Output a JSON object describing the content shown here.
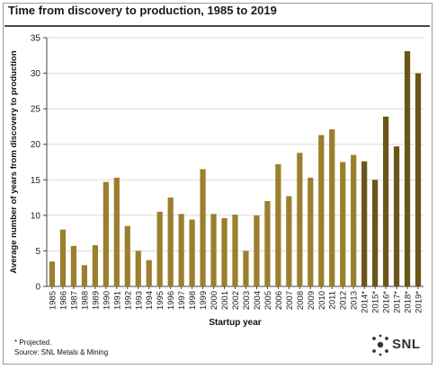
{
  "title": "Time from discovery to production, 1985 to 2019",
  "footnote": "* Projected.",
  "source": "Source: SNL Metals & Mining",
  "logo_text": "SNL",
  "colors": {
    "actual": "#9b7f2d",
    "projected": "#6b5518",
    "last_actual": "#c4a86a",
    "axis": "#444444",
    "grid": "#d9d9d9"
  },
  "chart_data": {
    "type": "bar",
    "title": "Time from discovery to production, 1985 to 2019",
    "xlabel": "Startup year",
    "ylabel": "Average number of years from discovery to production",
    "ylim": [
      0,
      35
    ],
    "yticks": [
      0,
      5,
      10,
      15,
      20,
      25,
      30,
      35
    ],
    "grid": true,
    "categories": [
      "1985",
      "1986",
      "1987",
      "1988",
      "1989",
      "1990",
      "1991",
      "1992",
      "1993",
      "1994",
      "1995",
      "1996",
      "1997",
      "1998",
      "1999",
      "2000",
      "2001",
      "2002",
      "2003",
      "2004",
      "2005",
      "2006",
      "2007",
      "2008",
      "2009",
      "2010",
      "2011",
      "2012",
      "2013",
      "2014*",
      "2015*",
      "2016*",
      "2017*",
      "2018*",
      "2019*"
    ],
    "values": [
      3.5,
      8,
      5.7,
      3,
      5.8,
      14.7,
      15.3,
      8.5,
      5,
      3.7,
      10.5,
      12.5,
      10.2,
      9.4,
      16.5,
      10.2,
      9.6,
      10.1,
      5,
      10,
      12,
      17.2,
      12.7,
      18.8,
      15.3,
      21.3,
      22.1,
      17.5,
      18.5,
      17.6,
      15,
      23.9,
      19.7,
      33.1,
      30
    ]
  }
}
